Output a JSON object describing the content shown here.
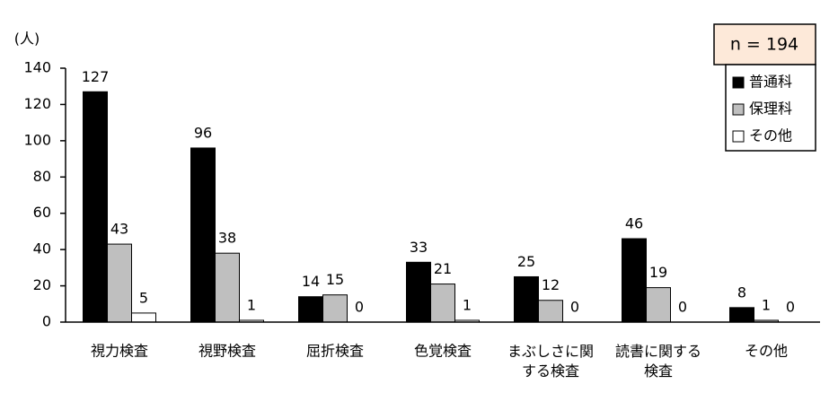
{
  "chart_data": {
    "type": "bar",
    "y_unit_label": "(人)",
    "note": "n = 194",
    "categories": [
      "視力検査",
      "視野検査",
      "屈折検査",
      "色覚検査",
      "まぶしさに関\nする検査",
      "読書に関する\n検査",
      "その他"
    ],
    "series": [
      {
        "name": "普通科",
        "color": "#000000",
        "values": [
          127,
          96,
          14,
          33,
          25,
          46,
          8
        ]
      },
      {
        "name": "保理科",
        "color": "#bfbfbf",
        "values": [
          43,
          38,
          15,
          21,
          12,
          19,
          1
        ]
      },
      {
        "name": "その他",
        "color": "#ffffff",
        "values": [
          5,
          1,
          0,
          1,
          0,
          0,
          0
        ]
      }
    ],
    "ylim": [
      0,
      140
    ],
    "yticks": [
      0,
      20,
      40,
      60,
      80,
      100,
      120,
      140
    ],
    "legend": "top-right",
    "grid": false
  }
}
